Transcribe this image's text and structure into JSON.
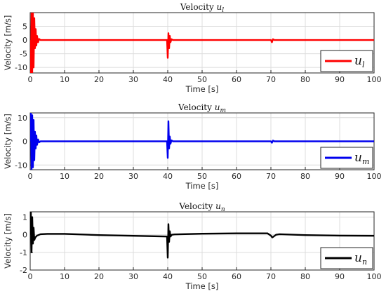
{
  "chart_data": [
    {
      "type": "line",
      "title": "Velocity",
      "title_sub": "l",
      "xlabel": "Time [s]",
      "ylabel": "Velocity [m/s]",
      "xlim": [
        0,
        100
      ],
      "ylim": [
        -12,
        10
      ],
      "xticks": [
        0,
        10,
        20,
        30,
        40,
        50,
        60,
        70,
        80,
        90,
        100
      ],
      "yticks": [
        -10,
        -5,
        0,
        5
      ],
      "grid": true,
      "legend_position": "bottom-right",
      "series": [
        {
          "legend": "u",
          "legend_sub": "l",
          "color": "#ff0000",
          "x": [
            0,
            0.2,
            0.4,
            0.6,
            0.8,
            1.0,
            1.2,
            1.4,
            1.6,
            1.8,
            2.0,
            2.3,
            2.6,
            3.0,
            4.0,
            39.8,
            40.0,
            40.2,
            40.4,
            40.6,
            40.8,
            41.1,
            41.5,
            42.0,
            70.0,
            70.3,
            70.6,
            71.0,
            72.0,
            100
          ],
          "y": [
            0,
            -12,
            10,
            -12,
            10,
            -10,
            8,
            -3,
            4,
            -2,
            1.5,
            -0.8,
            0.4,
            0,
            0,
            0,
            -6.5,
            2.5,
            -3,
            1.5,
            -0.8,
            0.3,
            0,
            0,
            0,
            -0.8,
            0.3,
            0,
            0,
            0
          ]
        }
      ]
    },
    {
      "type": "line",
      "title": "Velocity",
      "title_sub": "m",
      "xlabel": "Time [s]",
      "ylabel": "Velocity [m/s]",
      "xlim": [
        0,
        100
      ],
      "ylim": [
        -12,
        12
      ],
      "xticks": [
        0,
        10,
        20,
        30,
        40,
        50,
        60,
        70,
        80,
        90,
        100
      ],
      "yticks": [
        -10,
        0,
        10
      ],
      "grid": true,
      "legend_position": "bottom-right",
      "series": [
        {
          "legend": "u",
          "legend_sub": "m",
          "color": "#0000ee",
          "x": [
            0,
            0.2,
            0.4,
            0.6,
            0.8,
            1.0,
            1.2,
            1.4,
            1.6,
            1.8,
            2.0,
            2.3,
            2.6,
            3.0,
            4.0,
            39.8,
            40.0,
            40.2,
            40.4,
            40.6,
            40.8,
            41.1,
            41.5,
            42.0,
            70.0,
            70.3,
            70.6,
            71.0,
            72.0,
            100
          ],
          "y": [
            0,
            12,
            -12,
            11,
            -11,
            9,
            -8,
            4,
            -3,
            2.5,
            -1.5,
            0.8,
            -0.4,
            0,
            0,
            0,
            -7,
            8.5,
            -3,
            2,
            -1,
            0.4,
            0,
            0,
            0,
            -0.6,
            0.3,
            0,
            0,
            0
          ]
        }
      ]
    },
    {
      "type": "line",
      "title": "Velocity",
      "title_sub": "n",
      "xlabel": "Time [s]",
      "ylabel": "Velocity [m/s]",
      "xlim": [
        0,
        100
      ],
      "ylim": [
        -2,
        1.3
      ],
      "xticks": [
        0,
        10,
        20,
        30,
        40,
        50,
        60,
        70,
        80,
        90,
        100
      ],
      "yticks": [
        -2,
        -1,
        0,
        1
      ],
      "grid": true,
      "legend_position": "bottom-right",
      "series": [
        {
          "legend": "u",
          "legend_sub": "n",
          "color": "#000000",
          "x": [
            0,
            0.2,
            0.4,
            0.6,
            0.8,
            1.0,
            1.2,
            1.5,
            2.0,
            3,
            5,
            10,
            20,
            30,
            39.8,
            40.0,
            40.2,
            40.4,
            40.6,
            40.8,
            41.2,
            42,
            50,
            60,
            69,
            70,
            70.4,
            70.8,
            71.5,
            72.5,
            80,
            90,
            100
          ],
          "y": [
            0,
            1.3,
            -1.0,
            1.0,
            -0.5,
            0.4,
            -0.3,
            -0.15,
            -0.05,
            0.03,
            0.05,
            0.05,
            -0.02,
            -0.06,
            -0.1,
            -1.3,
            0.6,
            -0.4,
            0.2,
            -0.1,
            0.0,
            0.02,
            0.06,
            0.08,
            0.08,
            -0.05,
            -0.15,
            -0.1,
            0.0,
            0.03,
            -0.02,
            -0.05,
            -0.06
          ]
        }
      ]
    }
  ]
}
